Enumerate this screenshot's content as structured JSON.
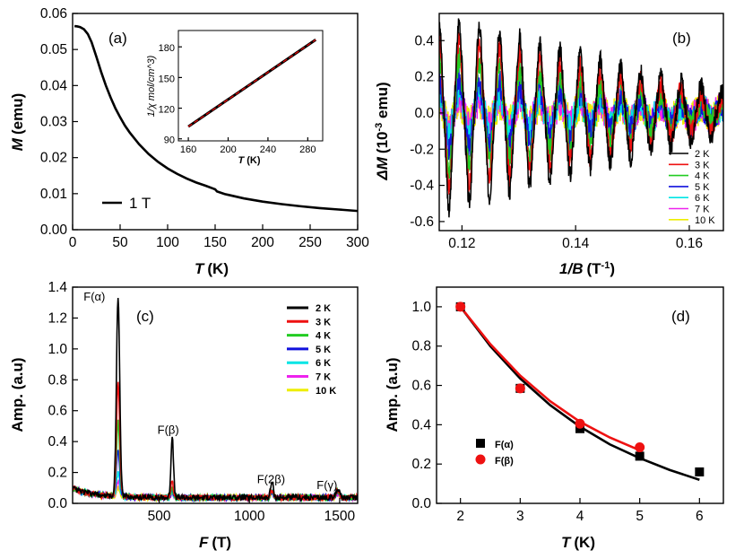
{
  "chart_data": [
    {
      "id": "a",
      "type": "line",
      "panel_label": "(a)",
      "xlabel_var": "T",
      "xlabel_unit": "(K)",
      "ylabel_var": "M",
      "ylabel_unit": "(emu)",
      "xlim": [
        0,
        300
      ],
      "ylim": [
        0,
        0.06
      ],
      "xticks": [
        0,
        50,
        100,
        150,
        200,
        250,
        300
      ],
      "yticks": [
        "0.00",
        "0.01",
        "0.02",
        "0.03",
        "0.04",
        "0.05",
        "0.06"
      ],
      "legend": "1 T",
      "series": [
        {
          "name": "1 T",
          "color": "#000000",
          "x": [
            2,
            5,
            8,
            12,
            16,
            20,
            25,
            30,
            35,
            40,
            45,
            50,
            55,
            60,
            70,
            80,
            90,
            100,
            110,
            120,
            130,
            140,
            148,
            150,
            152,
            160,
            180,
            200,
            220,
            240,
            260,
            280,
            300
          ],
          "y": [
            0.0565,
            0.0564,
            0.0562,
            0.0556,
            0.0543,
            0.052,
            0.048,
            0.0438,
            0.04,
            0.0367,
            0.0337,
            0.0312,
            0.0289,
            0.027,
            0.0237,
            0.021,
            0.0188,
            0.017,
            0.0155,
            0.0142,
            0.0131,
            0.0122,
            0.0114,
            0.0112,
            0.0106,
            0.0099,
            0.0087,
            0.0078,
            0.0071,
            0.0065,
            0.006,
            0.0056,
            0.0052
          ]
        }
      ],
      "inset": {
        "type": "line",
        "xlabel_var": "T",
        "xlabel_unit": "(K)",
        "ylabel": "1/χ mol/cm^3)",
        "xlim": [
          150,
          295
        ],
        "ylim": [
          88,
          196
        ],
        "xticks": [
          160,
          200,
          240,
          280
        ],
        "yticks": [
          90,
          120,
          150,
          180
        ],
        "data": {
          "x": [
            160,
            288
          ],
          "y": [
            102,
            187
          ],
          "color": "#000000"
        },
        "fit": {
          "x": [
            160,
            288
          ],
          "y": [
            102,
            187
          ],
          "color": "#e00000"
        }
      }
    },
    {
      "id": "b",
      "type": "line",
      "panel_label": "(b)",
      "xlabel_var": "1/B",
      "xlabel_unit": "(T",
      "xlabel_sup": "-1",
      "xlabel_close": ")",
      "ylabel_var": "ΔM",
      "ylabel_unit": "(10",
      "ylabel_sup": "-3",
      "ylabel_close": " emu)",
      "xlim": [
        0.116,
        0.166
      ],
      "ylim": [
        -0.65,
        0.55
      ],
      "xticks": [
        "0.12",
        "0.14",
        "0.16"
      ],
      "yticks": [
        "-0.6",
        "-0.4",
        "-0.2",
        "0.0",
        "0.2",
        "0.4"
      ],
      "oscillation": {
        "x_start": 0.116,
        "x_end": 0.166,
        "period": 0.00355
      },
      "series": [
        {
          "name": "2 K",
          "color": "#000000",
          "amplitude": [
            0.47,
            0.1
          ]
        },
        {
          "name": "3 K",
          "color": "#ee1111",
          "amplitude": [
            0.38,
            0.06
          ]
        },
        {
          "name": "4 K",
          "color": "#22cc22",
          "amplitude": [
            0.28,
            0.04
          ]
        },
        {
          "name": "5 K",
          "color": "#1111dd",
          "amplitude": [
            0.18,
            0.03
          ]
        },
        {
          "name": "6 K",
          "color": "#00e5e5",
          "amplitude": [
            0.12,
            0.03
          ]
        },
        {
          "name": "7 K",
          "color": "#ee22ee",
          "amplitude": [
            0.08,
            0.03
          ]
        },
        {
          "name": "10 K",
          "color": "#eeee00",
          "amplitude": [
            0.05,
            0.03
          ]
        }
      ]
    },
    {
      "id": "c",
      "type": "line",
      "panel_label": "(c)",
      "xlabel_var": "F",
      "xlabel_unit": "(T)",
      "ylabel": "Amp. (a.u)",
      "xlim": [
        20,
        1600
      ],
      "ylim": [
        0,
        1.4
      ],
      "xticks": [
        "500",
        "1000",
        "1500"
      ],
      "yticks": [
        "0.0",
        "0.2",
        "0.4",
        "0.6",
        "0.8",
        "1.0",
        "1.2",
        "1.4"
      ],
      "annotations": [
        {
          "text": "F(α)",
          "x": 270,
          "y": 1.3
        },
        {
          "text": "F(β)",
          "x": 560,
          "y": 0.44
        },
        {
          "text": "F(2β)",
          "x": 1120,
          "y": 0.12
        },
        {
          "text": "F(γ)",
          "x": 1480,
          "y": 0.08
        }
      ],
      "series": [
        {
          "name": "2 K",
          "color": "#000000",
          "peaks": {
            "alpha": 1.3,
            "beta": 0.39,
            "two_beta": 0.1,
            "gamma": 0.06
          }
        },
        {
          "name": "3 K",
          "color": "#ee1111",
          "peaks": {
            "alpha": 0.74,
            "beta": 0.1,
            "two_beta": 0.05,
            "gamma": 0.05
          }
        },
        {
          "name": "4 K",
          "color": "#22cc22",
          "peaks": {
            "alpha": 0.48,
            "beta": 0.06,
            "two_beta": 0.04,
            "gamma": 0.04
          }
        },
        {
          "name": "5 K",
          "color": "#1111dd",
          "peaks": {
            "alpha": 0.3,
            "beta": 0.05,
            "two_beta": 0.04,
            "gamma": 0.04
          }
        },
        {
          "name": "6 K",
          "color": "#00e5e5",
          "peaks": {
            "alpha": 0.15,
            "beta": 0.04,
            "two_beta": 0.04,
            "gamma": 0.04
          }
        },
        {
          "name": "7 K",
          "color": "#ee22ee",
          "peaks": {
            "alpha": 0.1,
            "beta": 0.04,
            "two_beta": 0.03,
            "gamma": 0.03
          }
        },
        {
          "name": "10 K",
          "color": "#eeee00",
          "peaks": {
            "alpha": 0.06,
            "beta": 0.03,
            "two_beta": 0.03,
            "gamma": 0.03
          }
        }
      ],
      "peak_positions": {
        "alpha": 272,
        "beta": 572,
        "two_beta": 1125,
        "gamma": 1490
      }
    },
    {
      "id": "d",
      "type": "scatter",
      "panel_label": "(d)",
      "xlabel_var": "T",
      "xlabel_unit": "(K)",
      "ylabel": "Amp. (a.u)",
      "xlim": [
        1.6,
        6.4
      ],
      "ylim": [
        0,
        1.1
      ],
      "xticks": [
        "2",
        "3",
        "4",
        "5",
        "6"
      ],
      "yticks": [
        "0.0",
        "0.2",
        "0.4",
        "0.6",
        "0.8",
        "1.0"
      ],
      "series": [
        {
          "name": "F(α)",
          "color": "#000000",
          "marker": "square",
          "x": [
            2,
            3,
            4,
            5,
            6
          ],
          "y": [
            1.0,
            0.585,
            0.38,
            0.24,
            0.16
          ],
          "fit": {
            "x": [
              2,
              2.5,
              3,
              3.5,
              4,
              4.5,
              5,
              5.5,
              6
            ],
            "y": [
              1.0,
              0.8,
              0.635,
              0.5,
              0.39,
              0.3,
              0.23,
              0.17,
              0.12
            ]
          }
        },
        {
          "name": "F(β)",
          "color": "#ee1111",
          "marker": "circle",
          "x": [
            2,
            3,
            4,
            5
          ],
          "y": [
            1.0,
            0.585,
            0.405,
            0.285
          ],
          "fit": {
            "x": [
              2,
              2.5,
              3,
              3.5,
              4,
              4.5,
              5
            ],
            "y": [
              1.0,
              0.81,
              0.65,
              0.52,
              0.415,
              0.335,
              0.27
            ]
          }
        }
      ]
    }
  ]
}
